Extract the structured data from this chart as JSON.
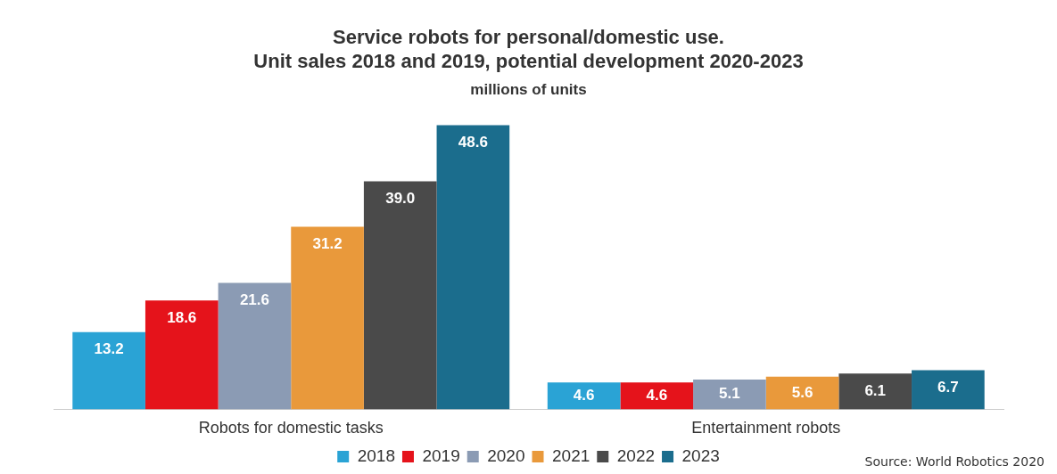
{
  "chart_data": {
    "type": "bar",
    "title": "Service robots for personal/domestic use.\nUnit sales 2018 and 2019, potential development 2020-2023",
    "subtitle": "millions of units",
    "categories": [
      "Robots for domestic tasks",
      "Entertainment robots"
    ],
    "series": [
      {
        "name": "2018",
        "color": "#2aa3d5",
        "values": [
          13.2,
          4.6
        ]
      },
      {
        "name": "2019",
        "color": "#e5131b",
        "values": [
          18.6,
          4.6
        ]
      },
      {
        "name": "2020",
        "color": "#8b9bb4",
        "values": [
          21.6,
          5.1
        ]
      },
      {
        "name": "2021",
        "color": "#e9993b",
        "values": [
          31.2,
          5.6
        ]
      },
      {
        "name": "2022",
        "color": "#4a4a4a",
        "values": [
          39.0,
          6.1
        ],
        "value_labels": [
          "39.0",
          "6.1"
        ]
      },
      {
        "name": "2023",
        "color": "#1b6d8d",
        "values": [
          48.6,
          6.7
        ]
      }
    ],
    "data_labels": true,
    "grid": false,
    "legend": "bottom",
    "annotations": [
      "Source: World Robotics 2020"
    ]
  }
}
